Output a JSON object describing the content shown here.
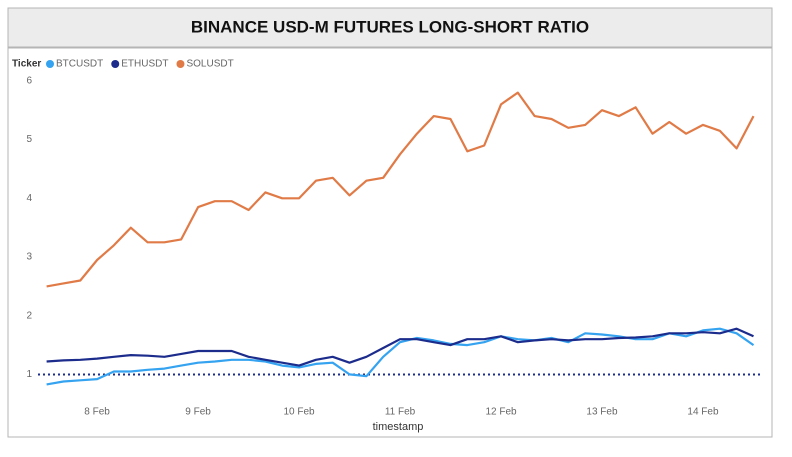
{
  "chart_data": {
    "type": "line",
    "title": "BINANCE USD-M FUTURES LONG-SHORT RATIO",
    "legend_title": "Ticker",
    "x_label": "timestamp",
    "categories": [
      null,
      null,
      null,
      "8 Feb",
      null,
      null,
      null,
      null,
      null,
      "9 Feb",
      null,
      null,
      null,
      null,
      null,
      "10 Feb",
      null,
      null,
      null,
      null,
      null,
      "11 Feb",
      null,
      null,
      null,
      null,
      null,
      "12 Feb",
      null,
      null,
      null,
      null,
      null,
      "13 Feb",
      null,
      null,
      null,
      null,
      null,
      "14 Feb",
      null,
      null,
      null
    ],
    "series": [
      {
        "name": "BTCUSDT",
        "color": "#35a3f0",
        "values": [
          0.83,
          0.88,
          0.9,
          0.92,
          1.05,
          1.05,
          1.08,
          1.1,
          1.15,
          1.2,
          1.22,
          1.25,
          1.25,
          1.22,
          1.15,
          1.12,
          1.18,
          1.2,
          1.0,
          0.97,
          1.3,
          1.55,
          1.62,
          1.58,
          1.52,
          1.5,
          1.55,
          1.65,
          1.6,
          1.58,
          1.62,
          1.55,
          1.7,
          1.68,
          1.65,
          1.6,
          1.6,
          1.7,
          1.65,
          1.75,
          1.78,
          1.7,
          1.5
        ]
      },
      {
        "name": "ETHUSDT",
        "color": "#1c2c8c",
        "values": [
          1.22,
          1.24,
          1.25,
          1.27,
          1.3,
          1.33,
          1.32,
          1.3,
          1.35,
          1.4,
          1.4,
          1.4,
          1.3,
          1.25,
          1.2,
          1.15,
          1.25,
          1.3,
          1.2,
          1.3,
          1.45,
          1.6,
          1.6,
          1.55,
          1.5,
          1.6,
          1.6,
          1.65,
          1.55,
          1.58,
          1.6,
          1.58,
          1.6,
          1.6,
          1.62,
          1.63,
          1.65,
          1.7,
          1.7,
          1.72,
          1.7,
          1.78,
          1.65
        ]
      },
      {
        "name": "SOLUSDT",
        "color": "#e07b47",
        "values": [
          2.5,
          2.55,
          2.6,
          2.95,
          3.2,
          3.5,
          3.25,
          3.25,
          3.3,
          3.85,
          3.95,
          3.95,
          3.8,
          4.1,
          4.0,
          4.0,
          4.3,
          4.35,
          4.05,
          4.3,
          4.35,
          4.75,
          5.1,
          5.4,
          5.35,
          4.8,
          4.9,
          5.6,
          5.8,
          5.4,
          5.35,
          5.2,
          5.25,
          5.5,
          5.4,
          5.55,
          5.1,
          5.3,
          5.1,
          5.25,
          5.15,
          4.85,
          5.4
        ]
      }
    ],
    "reference_line": 1,
    "ylim": [
      0.65,
      6.1
    ],
    "yticks": [
      1,
      2,
      3,
      4,
      5,
      6
    ]
  }
}
